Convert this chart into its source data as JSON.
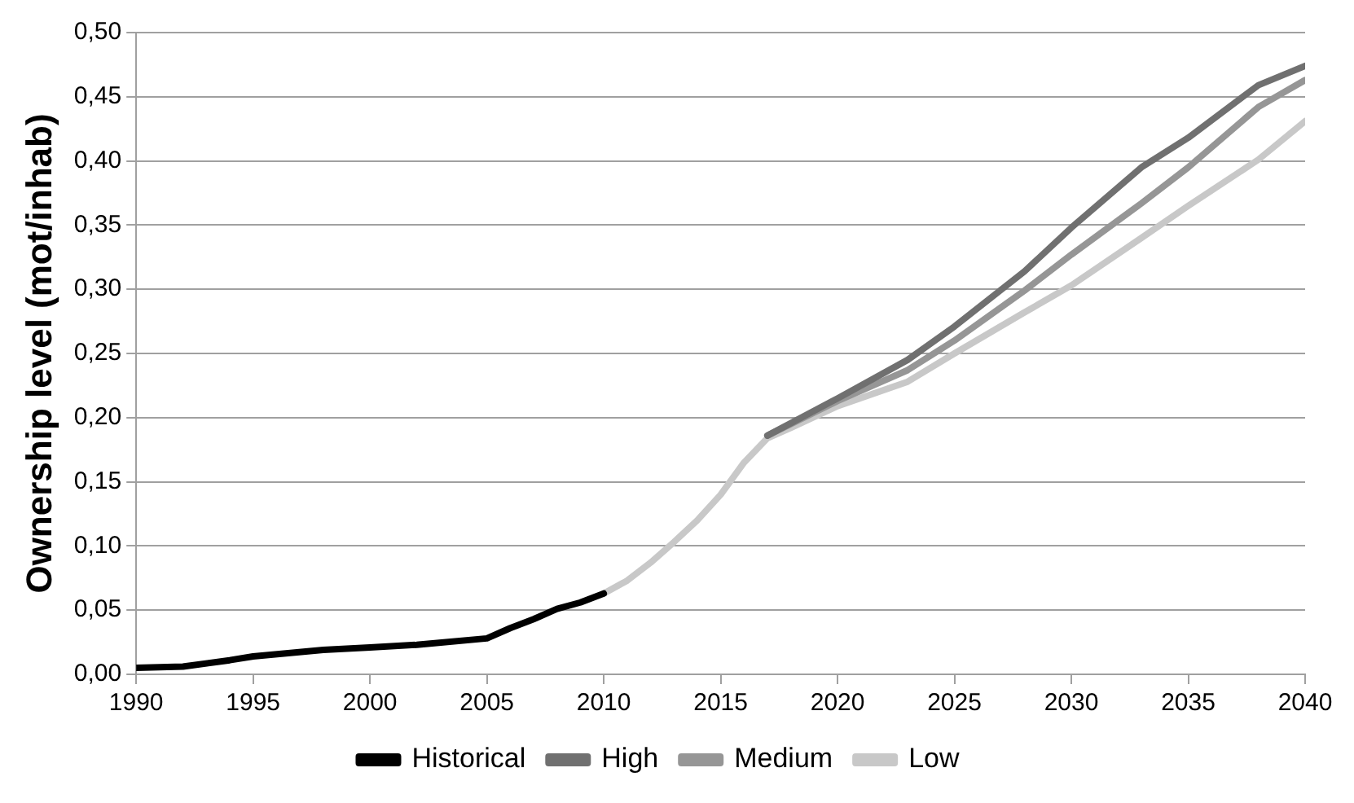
{
  "chart_data": {
    "type": "line",
    "ylabel": "Ownership level (mot/inhab)",
    "xlim": [
      1990,
      2040
    ],
    "xticks": [
      1990,
      1995,
      2000,
      2005,
      2010,
      2015,
      2020,
      2025,
      2030,
      2035,
      2040
    ],
    "ylim": [
      0,
      0.5
    ],
    "yticks": [
      {
        "value": 0,
        "label": "0,00"
      },
      {
        "value": 0.05,
        "label": "0,05"
      },
      {
        "value": 0.1,
        "label": "0,10"
      },
      {
        "value": 0.15,
        "label": "0,15"
      },
      {
        "value": 0.2,
        "label": "0,20"
      },
      {
        "value": 0.25,
        "label": "0,25"
      },
      {
        "value": 0.3,
        "label": "0,30"
      },
      {
        "value": 0.35,
        "label": "0,35"
      },
      {
        "value": 0.4,
        "label": "0,40"
      },
      {
        "value": 0.45,
        "label": "0,45"
      },
      {
        "value": 0.5,
        "label": "0,50"
      }
    ],
    "grid": "y",
    "legend": "bottom",
    "marker": "none",
    "line_style": "solid",
    "series": [
      {
        "name": "Historical",
        "color": "#000000",
        "x": [
          1990,
          1992,
          1994,
          1995,
          1998,
          2000,
          2002,
          2005,
          2006,
          2007,
          2008,
          2009,
          2010
        ],
        "values": [
          0.005,
          0.006,
          0.011,
          0.014,
          0.019,
          0.021,
          0.023,
          0.028,
          0.036,
          0.043,
          0.051,
          0.056,
          0.063
        ]
      },
      {
        "name": "High",
        "color": "#707070",
        "x": [
          2017,
          2020,
          2023,
          2025,
          2028,
          2030,
          2033,
          2035,
          2038,
          2040
        ],
        "values": [
          0.186,
          0.215,
          0.245,
          0.271,
          0.314,
          0.348,
          0.395,
          0.418,
          0.459,
          0.474
        ]
      },
      {
        "name": "Medium",
        "color": "#969696",
        "x": [
          2017,
          2020,
          2023,
          2025,
          2028,
          2030,
          2033,
          2035,
          2038,
          2040
        ],
        "values": [
          0.186,
          0.213,
          0.237,
          0.26,
          0.299,
          0.327,
          0.367,
          0.395,
          0.442,
          0.463
        ]
      },
      {
        "name": "Low",
        "color": "#c8c8c8",
        "x": [
          2010,
          2011,
          2012,
          2013,
          2014,
          2015,
          2016,
          2017,
          2018,
          2020,
          2023,
          2025,
          2028,
          2030,
          2033,
          2035,
          2038,
          2040
        ],
        "values": [
          0.063,
          0.073,
          0.087,
          0.103,
          0.12,
          0.14,
          0.165,
          0.184,
          0.192,
          0.209,
          0.228,
          0.25,
          0.282,
          0.303,
          0.34,
          0.365,
          0.401,
          0.431
        ]
      }
    ]
  }
}
